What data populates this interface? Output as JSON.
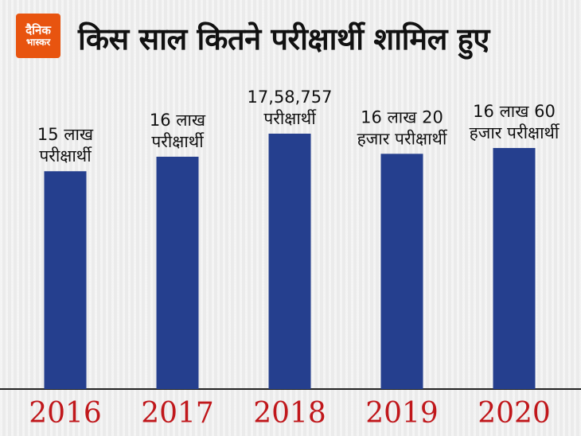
{
  "logo": {
    "line1": "दैनिक",
    "line2": "भास्कर",
    "color": "#e8540f"
  },
  "title": "किस साल कितने परीक्षार्थी शामिल हुए",
  "colors": {
    "bar": "#253f8e",
    "tick": "#c0171b",
    "background": "#efefef"
  },
  "chart_data": {
    "type": "bar",
    "title": "किस साल कितने परीक्षार्थी शामिल हुए",
    "xlabel": "",
    "ylabel": "",
    "grid": false,
    "categories": [
      "2016",
      "2017",
      "2018",
      "2019",
      "2020"
    ],
    "values": [
      1500000,
      1600000,
      1758757,
      1620000,
      1660000
    ],
    "data_labels": [
      [
        "15 लाख",
        "परीक्षार्थी"
      ],
      [
        "16 लाख",
        "परीक्षार्थी"
      ],
      [
        "17,58,757",
        "परीक्षार्थी"
      ],
      [
        "16 लाख 20",
        "हजार परीक्षार्थी"
      ],
      [
        "16 लाख 60",
        "हजार परीक्षार्थी"
      ]
    ]
  }
}
